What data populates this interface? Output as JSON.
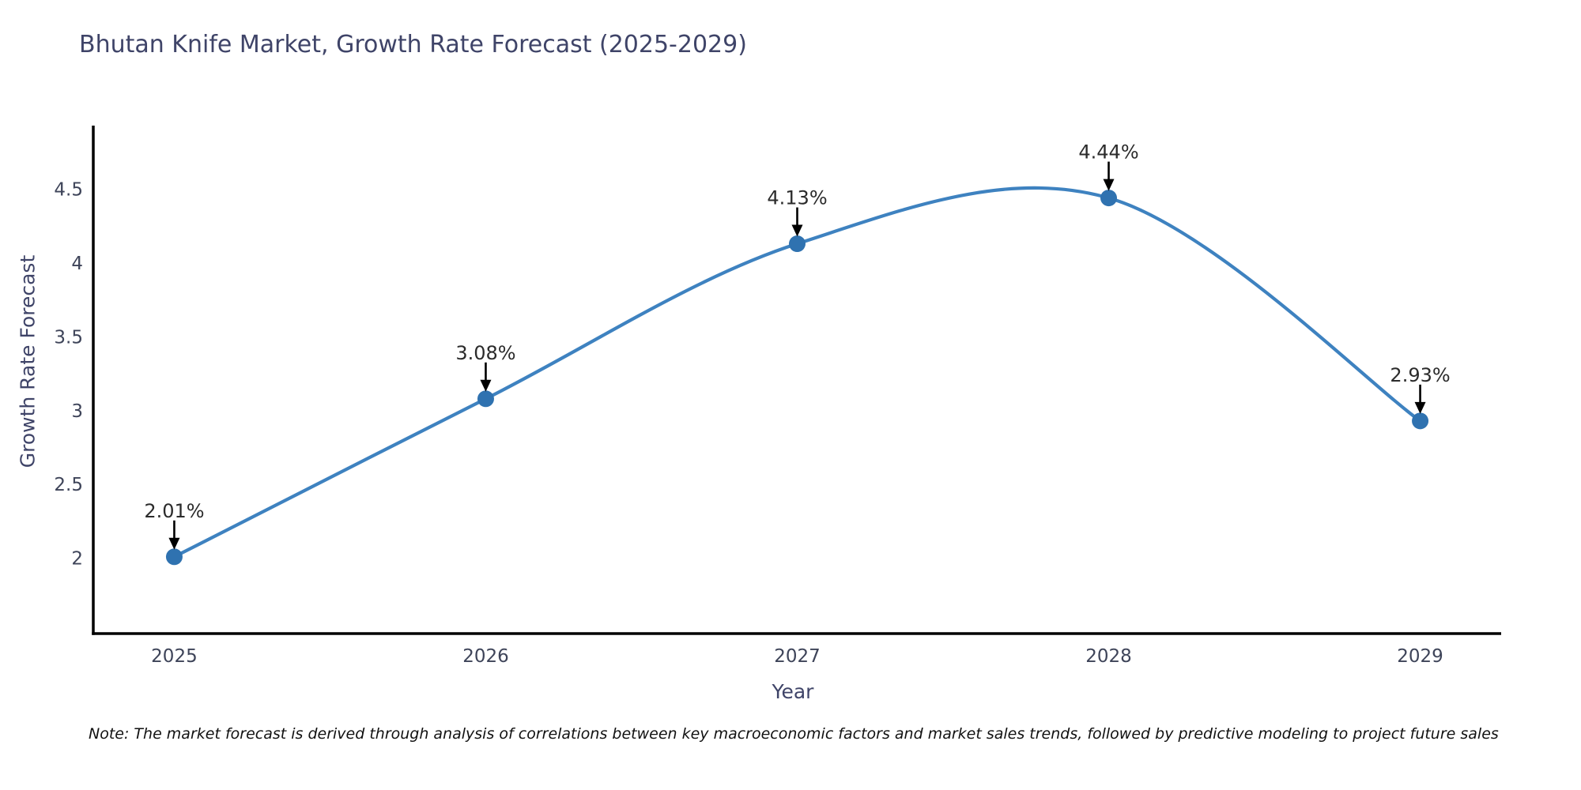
{
  "chart_data": {
    "type": "line",
    "title": "Bhutan Knife Market, Growth Rate Forecast (2025-2029)",
    "xlabel": "Year",
    "ylabel": "Growth Rate Forecast",
    "x": [
      2025,
      2026,
      2027,
      2028,
      2029
    ],
    "values": [
      2.01,
      3.08,
      4.13,
      4.44,
      2.93
    ],
    "point_labels": [
      "2.01%",
      "3.08%",
      "4.13%",
      "4.44%",
      "2.93%"
    ],
    "xtick_labels": [
      "2025",
      "2026",
      "2027",
      "2028",
      "2029"
    ],
    "yticks": [
      2,
      2.5,
      3,
      3.5,
      4,
      4.5
    ],
    "ytick_labels": [
      "2",
      "2.5",
      "3",
      "3.5",
      "4",
      "4.5"
    ],
    "xlim": [
      2024.74,
      2029.26
    ],
    "ylim": [
      1.49,
      4.93
    ],
    "grid": false,
    "legend": "none",
    "smooth_curve": true,
    "colors": {
      "line": "#3e82c0",
      "marker": "#2f72b0",
      "annotation_text": "#2b2b2b",
      "annotation_arrow": "#000000",
      "axis_spine": "#000000",
      "tick_label": "#3e4459",
      "axis_label": "#3f4468"
    },
    "note": "Note: The market forecast is derived through analysis of correlations between key macroeconomic factors and market sales trends, followed by predictive modeling to project future sales"
  }
}
